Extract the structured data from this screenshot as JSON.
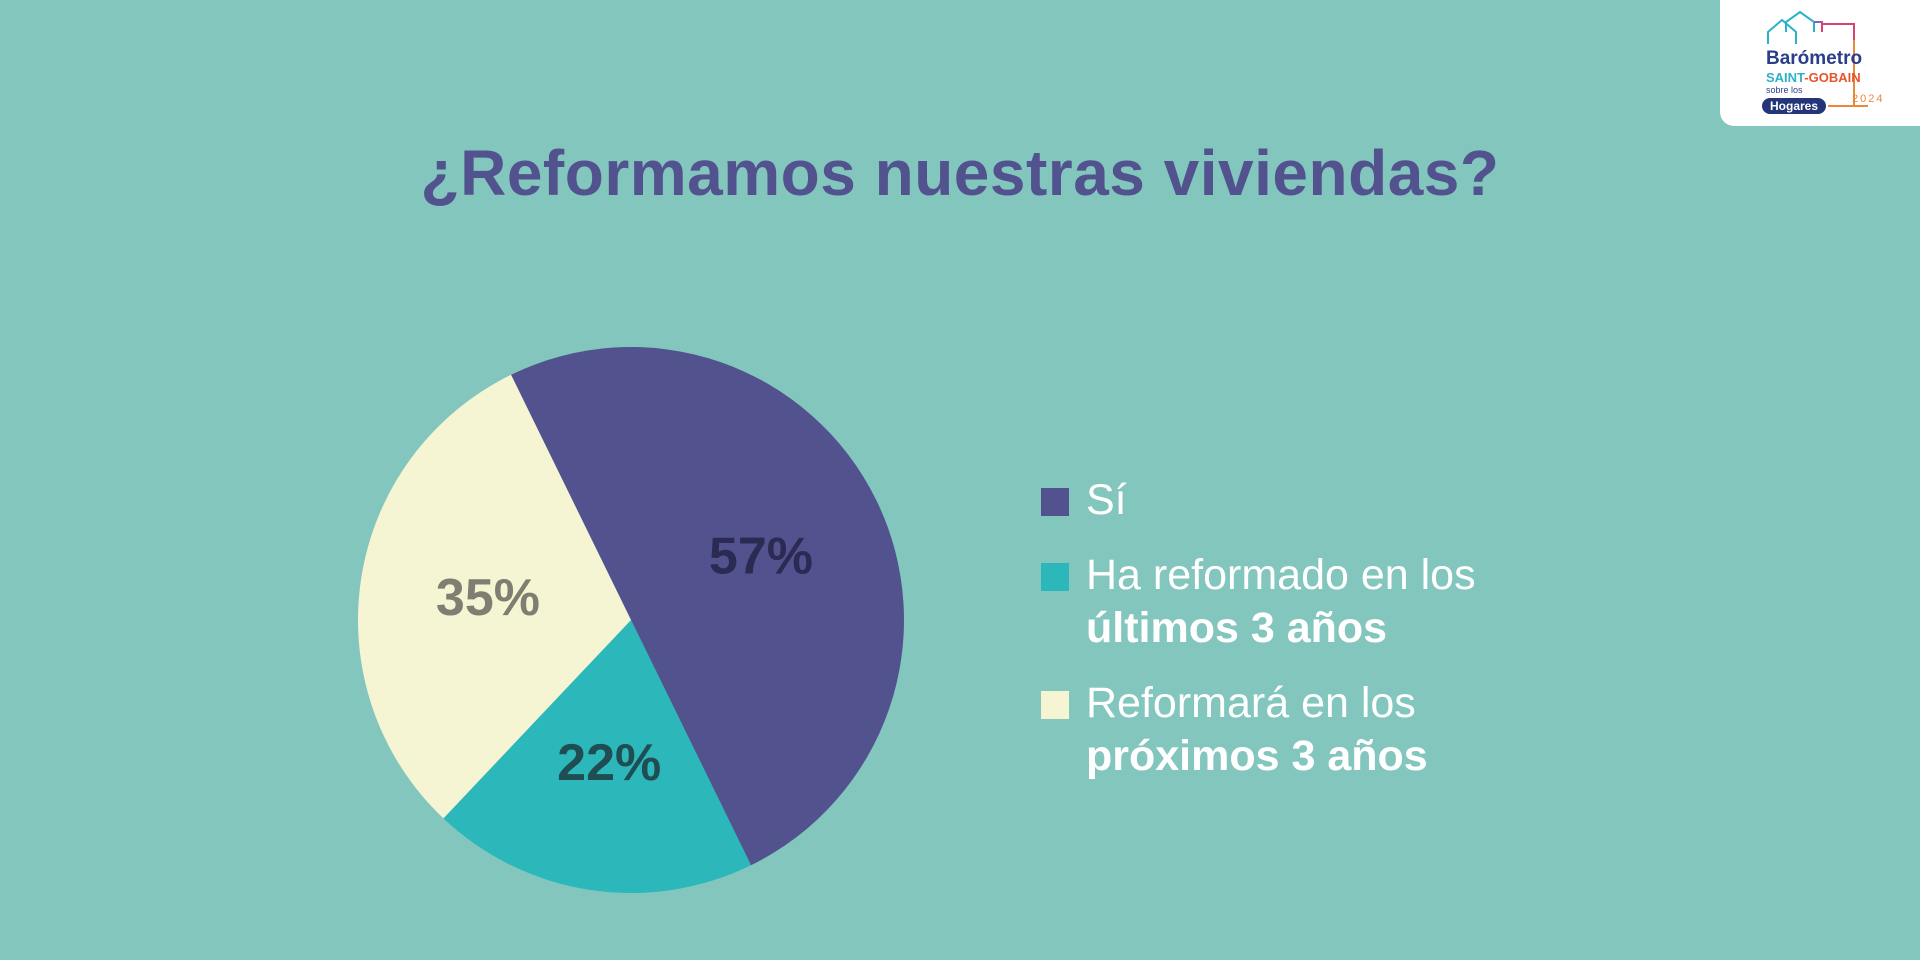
{
  "title": "¿Reformamos nuestras viviendas?",
  "chart_data": {
    "type": "pie",
    "slices": [
      {
        "label": "Sí",
        "value": 57,
        "display": "57%",
        "color": "#52528f",
        "label_color": "#2a2a52"
      },
      {
        "label": "Ha reformado en los últimos 3 años",
        "value": 22,
        "display": "22%",
        "color": "#2cb7ba",
        "label_color": "#1f4d52"
      },
      {
        "label": "Reformará en los próximos 3 años",
        "value": 35,
        "display": "35%",
        "color": "#f6f5d3",
        "label_color": "#7e7e72"
      }
    ],
    "legend_position": "right"
  },
  "legend": [
    {
      "line1": "Sí",
      "line2": "",
      "color": "#52528f"
    },
    {
      "line1": "Ha reformado en los",
      "line2": "últimos 3 años",
      "color": "#2cb7ba"
    },
    {
      "line1": "Reformará en los",
      "line2": "próximos 3 años",
      "color": "#f6f5d3"
    }
  ],
  "logo": {
    "line1": "Barómetro",
    "line2a": "SAINT",
    "line2b": "-GOBAIN",
    "line3": "sobre los",
    "pill": "Hogares",
    "year": "2024"
  }
}
